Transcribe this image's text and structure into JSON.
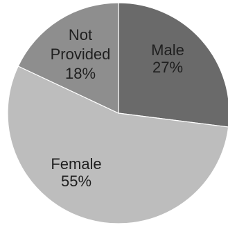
{
  "chart_data": {
    "type": "pie",
    "title": "",
    "slices": [
      {
        "label": "Male",
        "percent_text": "27%",
        "value": 27,
        "color": "#6a6a6a"
      },
      {
        "label": "Female",
        "percent_text": "55%",
        "value": 55,
        "color": "#bdbdbd"
      },
      {
        "label": "Not\nProvided",
        "percent_text": "18%",
        "value": 18,
        "color": "#8e8e8e"
      }
    ]
  }
}
